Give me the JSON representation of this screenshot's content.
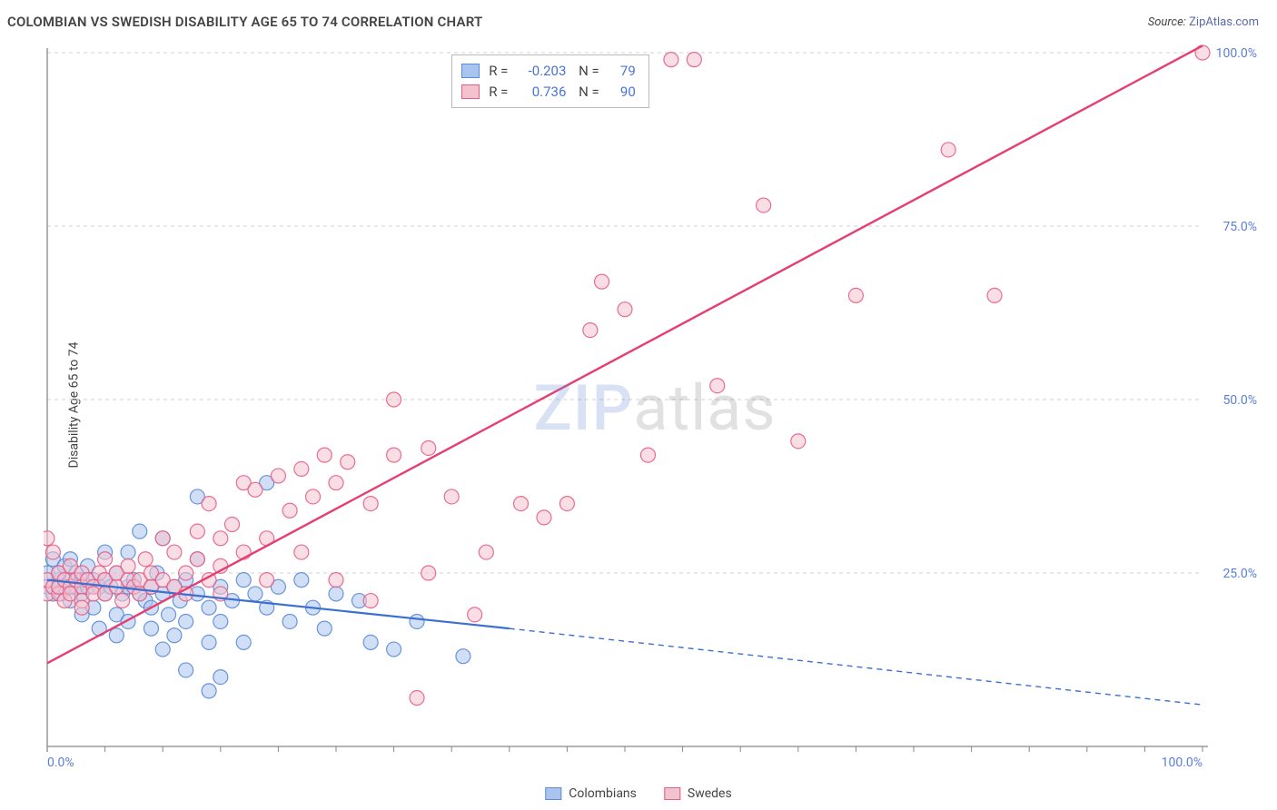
{
  "header": {
    "title": "COLOMBIAN VS SWEDISH DISABILITY AGE 65 TO 74 CORRELATION CHART",
    "source_label": "Source:",
    "source_value": "ZipAtlas.com"
  },
  "ylabel": "Disability Age 65 to 74",
  "watermark": {
    "part1": "ZIP",
    "part2": "atlas"
  },
  "chart": {
    "type": "scatter",
    "background_color": "#ffffff",
    "grid_color": "#d0d0d0",
    "grid_dash": "4 4",
    "xlim": [
      0,
      100
    ],
    "ylim": [
      0,
      100
    ],
    "x_ticks": [
      0,
      5,
      10,
      15,
      20,
      25,
      30,
      35,
      40,
      45,
      50,
      55,
      60,
      65,
      70,
      75,
      80,
      85,
      90,
      95,
      100
    ],
    "x_tick_labels": {
      "0": "0.0%",
      "100": "100.0%"
    },
    "y_gridlines": [
      25,
      50,
      75,
      100
    ],
    "y_tick_labels": {
      "25": "25.0%",
      "50": "50.0%",
      "75": "75.0%",
      "100": "100.0%"
    },
    "label_fontsize": 14,
    "label_color": "#5a7fd6",
    "marker_radius": 8,
    "marker_opacity": 0.55,
    "marker_stroke_width": 1.2,
    "series": [
      {
        "name": "Colombians",
        "fill": "#a9c5ef",
        "stroke": "#5b8bd6",
        "R": "-0.203",
        "N": "79",
        "trend": {
          "x1": 0,
          "y1": 24,
          "x2_solid": 40,
          "y2_solid": 17,
          "x2": 100,
          "y2": 6,
          "color": "#3b6fd0",
          "dash_after_solid": "6 5",
          "width": 2.2
        },
        "points": [
          [
            0,
            23
          ],
          [
            0,
            25
          ],
          [
            0.5,
            27
          ],
          [
            0.5,
            22
          ],
          [
            1,
            24
          ],
          [
            1,
            23
          ],
          [
            1,
            25
          ],
          [
            1.2,
            22
          ],
          [
            1.5,
            23
          ],
          [
            1.5,
            26
          ],
          [
            2,
            24
          ],
          [
            2,
            21
          ],
          [
            2,
            27
          ],
          [
            2.5,
            23
          ],
          [
            2.5,
            25
          ],
          [
            3,
            22
          ],
          [
            3,
            24
          ],
          [
            3,
            19
          ],
          [
            3.5,
            23
          ],
          [
            3.5,
            26
          ],
          [
            4,
            24
          ],
          [
            4,
            20
          ],
          [
            4.5,
            23
          ],
          [
            4.5,
            17
          ],
          [
            5,
            24
          ],
          [
            5,
            22
          ],
          [
            5,
            28
          ],
          [
            5.5,
            23
          ],
          [
            6,
            19
          ],
          [
            6,
            25
          ],
          [
            6,
            16
          ],
          [
            6.5,
            22
          ],
          [
            7,
            23
          ],
          [
            7,
            18
          ],
          [
            7,
            28
          ],
          [
            7.5,
            24
          ],
          [
            8,
            22
          ],
          [
            8,
            31
          ],
          [
            8.5,
            21
          ],
          [
            9,
            23
          ],
          [
            9,
            17
          ],
          [
            9,
            20
          ],
          [
            9.5,
            25
          ],
          [
            10,
            22
          ],
          [
            10,
            30
          ],
          [
            10,
            14
          ],
          [
            10.5,
            19
          ],
          [
            11,
            23
          ],
          [
            11,
            16
          ],
          [
            11.5,
            21
          ],
          [
            12,
            24
          ],
          [
            12,
            18
          ],
          [
            12,
            11
          ],
          [
            13,
            22
          ],
          [
            13,
            27
          ],
          [
            13,
            36
          ],
          [
            14,
            20
          ],
          [
            14,
            15
          ],
          [
            14,
            8
          ],
          [
            15,
            23
          ],
          [
            15,
            18
          ],
          [
            15,
            10
          ],
          [
            16,
            21
          ],
          [
            17,
            24
          ],
          [
            17,
            15
          ],
          [
            18,
            22
          ],
          [
            19,
            20
          ],
          [
            19,
            38
          ],
          [
            20,
            23
          ],
          [
            21,
            18
          ],
          [
            22,
            24
          ],
          [
            23,
            20
          ],
          [
            24,
            17
          ],
          [
            25,
            22
          ],
          [
            27,
            21
          ],
          [
            28,
            15
          ],
          [
            30,
            14
          ],
          [
            32,
            18
          ],
          [
            36,
            13
          ]
        ]
      },
      {
        "name": "Swedes",
        "fill": "#f4c2cf",
        "stroke": "#e55e86",
        "R": "0.736",
        "N": "90",
        "trend": {
          "x1": 0,
          "y1": 12,
          "x2_solid": 100,
          "y2_solid": 101,
          "x2": 100,
          "y2": 101,
          "color": "#e63e73",
          "dash_after_solid": null,
          "width": 2.4
        },
        "points": [
          [
            0,
            22
          ],
          [
            0,
            24
          ],
          [
            0.5,
            23
          ],
          [
            0.5,
            28
          ],
          [
            1,
            22
          ],
          [
            1,
            25
          ],
          [
            1,
            23
          ],
          [
            1.5,
            24
          ],
          [
            1.5,
            21
          ],
          [
            2,
            23
          ],
          [
            2,
            26
          ],
          [
            2,
            22
          ],
          [
            2.5,
            24
          ],
          [
            3,
            23
          ],
          [
            3,
            25
          ],
          [
            3,
            21
          ],
          [
            3.5,
            24
          ],
          [
            4,
            23
          ],
          [
            4,
            22
          ],
          [
            4.5,
            25
          ],
          [
            5,
            24
          ],
          [
            5,
            22
          ],
          [
            5,
            27
          ],
          [
            6,
            23
          ],
          [
            6,
            25
          ],
          [
            6.5,
            21
          ],
          [
            7,
            24
          ],
          [
            7,
            26
          ],
          [
            7.5,
            23
          ],
          [
            8,
            24
          ],
          [
            8,
            22
          ],
          [
            8.5,
            27
          ],
          [
            9,
            23
          ],
          [
            9,
            25
          ],
          [
            10,
            24
          ],
          [
            10,
            30
          ],
          [
            11,
            23
          ],
          [
            11,
            28
          ],
          [
            12,
            25
          ],
          [
            12,
            22
          ],
          [
            13,
            27
          ],
          [
            13,
            31
          ],
          [
            14,
            24
          ],
          [
            14,
            35
          ],
          [
            15,
            26
          ],
          [
            15,
            30
          ],
          [
            15,
            22
          ],
          [
            16,
            32
          ],
          [
            17,
            28
          ],
          [
            17,
            38
          ],
          [
            18,
            37
          ],
          [
            19,
            30
          ],
          [
            19,
            24
          ],
          [
            20,
            39
          ],
          [
            21,
            34
          ],
          [
            22,
            28
          ],
          [
            22,
            40
          ],
          [
            23,
            36
          ],
          [
            24,
            42
          ],
          [
            25,
            38
          ],
          [
            25,
            24
          ],
          [
            26,
            41
          ],
          [
            28,
            35
          ],
          [
            28,
            21
          ],
          [
            30,
            42
          ],
          [
            30,
            50
          ],
          [
            32,
            7
          ],
          [
            33,
            25
          ],
          [
            33,
            43
          ],
          [
            35,
            36
          ],
          [
            37,
            19
          ],
          [
            38,
            28
          ],
          [
            41,
            35
          ],
          [
            43,
            33
          ],
          [
            45,
            35
          ],
          [
            47,
            60
          ],
          [
            48,
            67
          ],
          [
            50,
            63
          ],
          [
            52,
            42
          ],
          [
            54,
            99
          ],
          [
            56,
            99
          ],
          [
            58,
            52
          ],
          [
            62,
            78
          ],
          [
            65,
            44
          ],
          [
            70,
            65
          ],
          [
            78,
            86
          ],
          [
            82,
            65
          ],
          [
            100,
            100
          ],
          [
            0,
            30
          ],
          [
            3,
            20
          ]
        ]
      }
    ],
    "bottom_legend": [
      {
        "label": "Colombians",
        "fill": "#a9c5ef",
        "stroke": "#5b8bd6"
      },
      {
        "label": "Swedes",
        "fill": "#f4c2cf",
        "stroke": "#e55e86"
      }
    ]
  }
}
